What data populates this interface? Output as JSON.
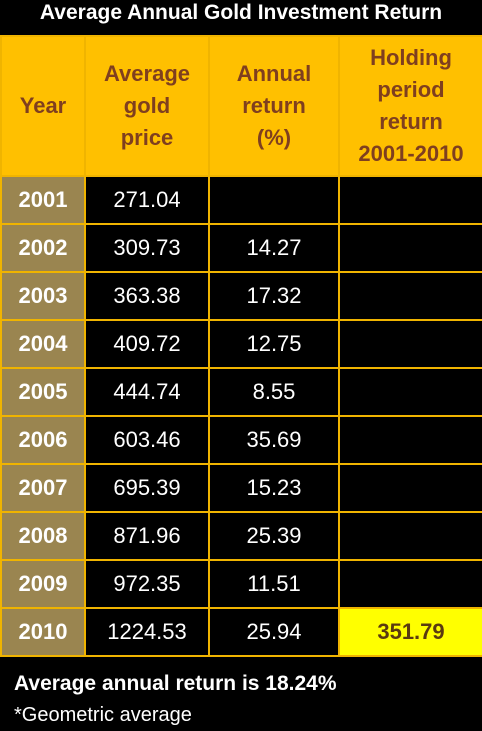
{
  "title": "Average Annual Gold Investment Return",
  "chart_data": {
    "type": "table",
    "columns": [
      "Year",
      "Average gold price",
      "Annual return (%)",
      "Holding period return 2001-2010"
    ],
    "rows": [
      {
        "year": "2001",
        "price": "271.04",
        "ret": "",
        "hold": ""
      },
      {
        "year": "2002",
        "price": "309.73",
        "ret": "14.27",
        "hold": ""
      },
      {
        "year": "2003",
        "price": "363.38",
        "ret": "17.32",
        "hold": ""
      },
      {
        "year": "2004",
        "price": "409.72",
        "ret": "12.75",
        "hold": ""
      },
      {
        "year": "2005",
        "price": "444.74",
        "ret": "8.55",
        "hold": ""
      },
      {
        "year": "2006",
        "price": "603.46",
        "ret": "35.69",
        "hold": ""
      },
      {
        "year": "2007",
        "price": "695.39",
        "ret": "15.23",
        "hold": ""
      },
      {
        "year": "2008",
        "price": "871.96",
        "ret": "25.39",
        "hold": ""
      },
      {
        "year": "2009",
        "price": "972.35",
        "ret": "11.51",
        "hold": ""
      },
      {
        "year": "2010",
        "price": "1224.53",
        "ret": "25.94",
        "hold": "351.79"
      }
    ]
  },
  "footer": {
    "summary": "Average annual return is 18.24%",
    "note": "*Geometric average"
  },
  "colors": {
    "header_bg": "#ffc000",
    "header_text": "#7f3f1f",
    "year_bg": "#9a8550",
    "highlight_bg": "#ffff00"
  }
}
